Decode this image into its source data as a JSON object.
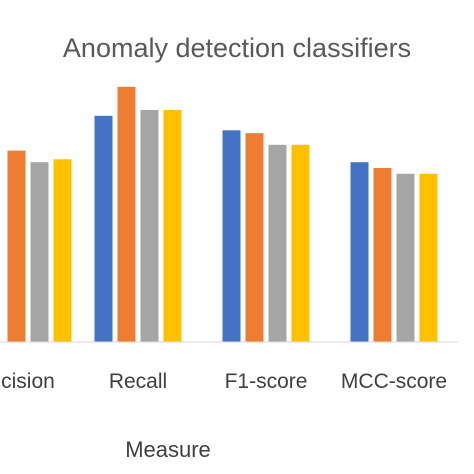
{
  "chart_data": {
    "type": "bar",
    "title": "Anomaly detection classifiers",
    "xlabel": "Measure",
    "ylabel": "",
    "categories": [
      "Precision",
      "Recall",
      "F1-score",
      "MCC-score"
    ],
    "visible_category_labels": [
      "cision",
      "Recall",
      "F1-score",
      "MCC-score"
    ],
    "ylim": [
      0,
      1
    ],
    "grid": false,
    "legend": "none",
    "series": [
      {
        "color": "#4472C4",
        "values": [
          null,
          0.78,
          0.73,
          0.62
        ]
      },
      {
        "color": "#ED7D31",
        "values": [
          0.66,
          0.88,
          0.72,
          0.6
        ]
      },
      {
        "color": "#A5A5A5",
        "values": [
          0.62,
          0.8,
          0.68,
          0.58
        ]
      },
      {
        "color": "#FFC000",
        "values": [
          0.63,
          0.8,
          0.68,
          0.58
        ]
      }
    ]
  }
}
